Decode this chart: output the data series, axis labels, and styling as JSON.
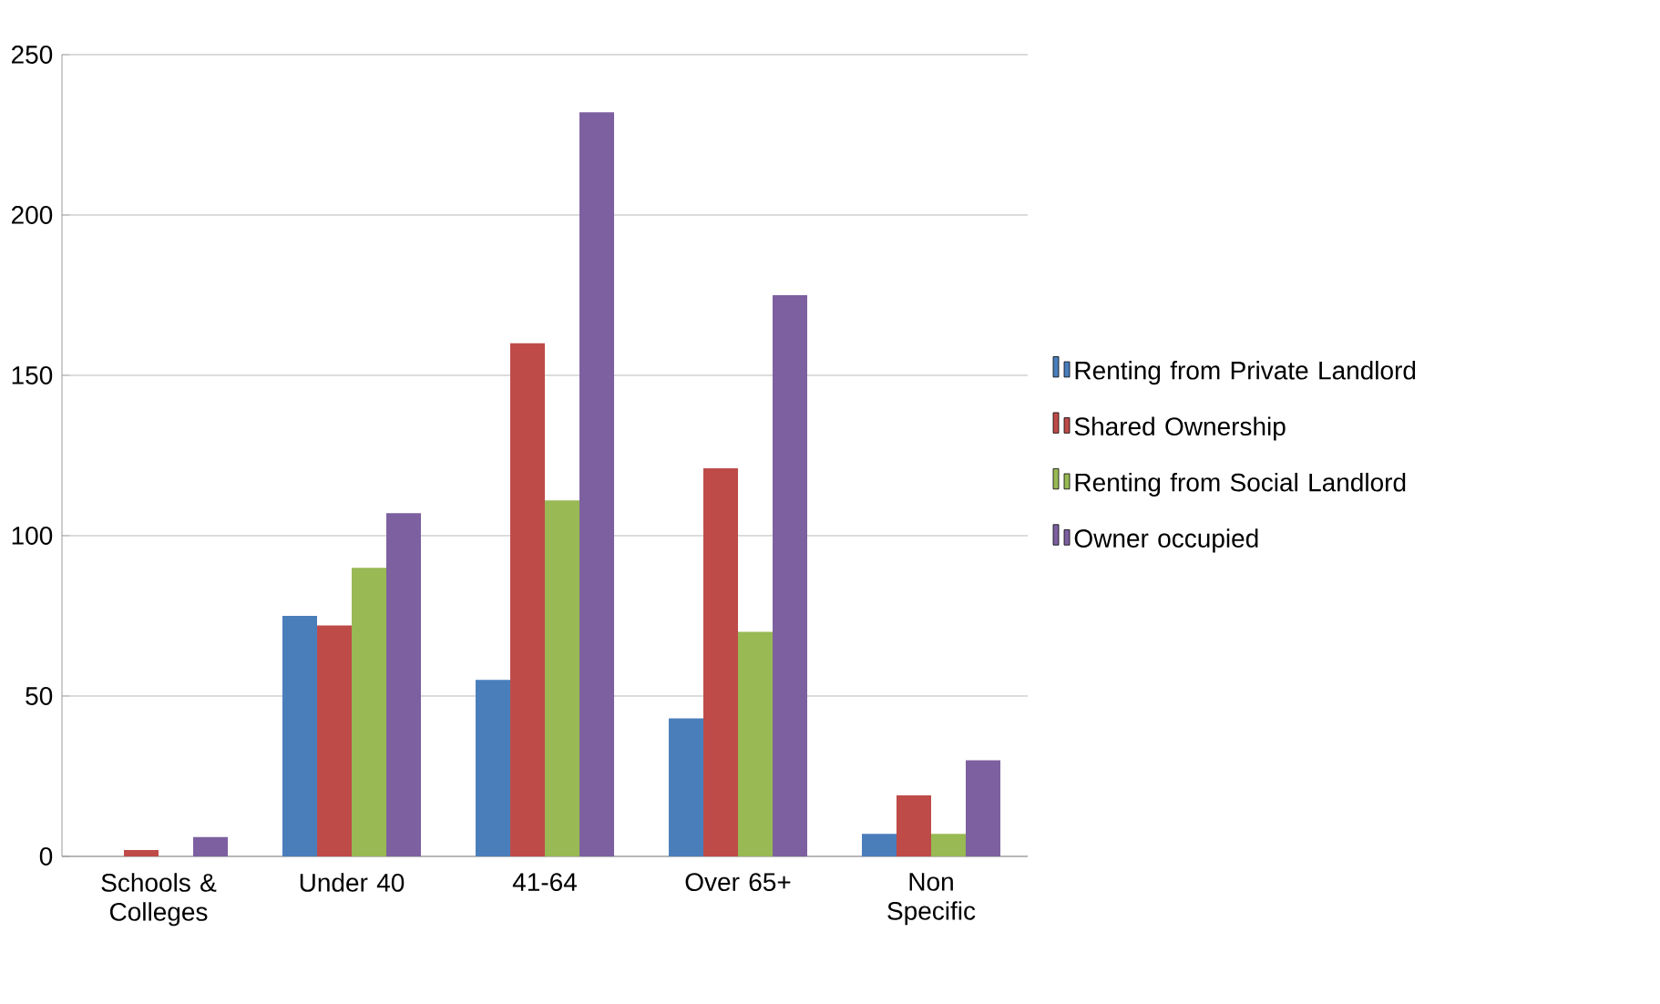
{
  "chart_data": {
    "type": "bar",
    "categories": [
      "Schools & Colleges",
      "Under 40",
      "41-64",
      "Over 65+",
      "Non Specific"
    ],
    "series": [
      {
        "name": "Renting from Private Landlord",
        "color": "#4a7ebb",
        "values": [
          0,
          75,
          55,
          43,
          7
        ]
      },
      {
        "name": "Shared Ownership",
        "color": "#be4b48",
        "values": [
          2,
          72,
          160,
          121,
          19
        ]
      },
      {
        "name": "Renting from Social Landlord",
        "color": "#98b954",
        "values": [
          0,
          90,
          111,
          70,
          7
        ]
      },
      {
        "name": "Owner occupied",
        "color": "#7d60a0",
        "values": [
          6,
          107,
          232,
          175,
          30
        ]
      }
    ],
    "ylim": [
      0,
      250
    ],
    "yticks": [
      0,
      50,
      100,
      150,
      200,
      250
    ],
    "grid": "y",
    "legend": "right"
  }
}
